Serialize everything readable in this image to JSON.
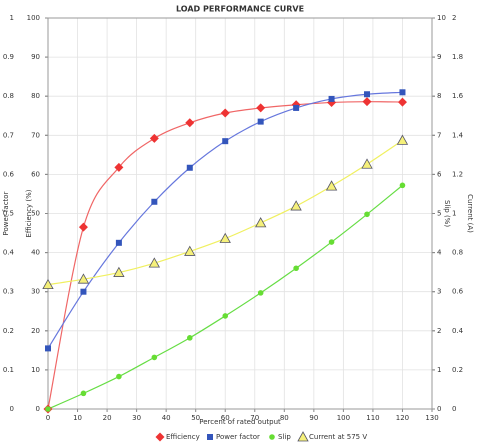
{
  "chart_data": {
    "type": "line",
    "title": "LOAD PERFORMANCE CURVE",
    "xlabel": "Percent of rated output",
    "xlim": [
      0,
      130
    ],
    "xticks": [
      0,
      10,
      20,
      30,
      40,
      50,
      60,
      70,
      80,
      90,
      100,
      110,
      120,
      130
    ],
    "grid": true,
    "axes": [
      {
        "label": "Power factor",
        "side": "left",
        "lim": [
          0,
          1
        ],
        "ticks": [
          0,
          0.1,
          0.2,
          0.3,
          0.4,
          0.5,
          0.6,
          0.7,
          0.8,
          0.9,
          1
        ]
      },
      {
        "label": "Efficiency (%)",
        "side": "left",
        "lim": [
          0,
          100
        ],
        "ticks": [
          0,
          10,
          20,
          30,
          40,
          50,
          60,
          70,
          80,
          90,
          100
        ]
      },
      {
        "label": "Slip (%)",
        "side": "right",
        "lim": [
          0,
          10
        ],
        "ticks": [
          0,
          1,
          2,
          3,
          4,
          5,
          6,
          7,
          8,
          9,
          10
        ]
      },
      {
        "label": "Current (A)",
        "side": "right",
        "lim": [
          0,
          2
        ],
        "ticks": [
          0,
          0.2,
          0.4,
          0.6,
          0.8,
          1,
          1.2,
          1.4,
          1.6,
          1.8,
          2
        ]
      }
    ],
    "x": [
      0,
      12,
      24,
      36,
      48,
      60,
      72,
      84,
      96,
      108,
      120
    ],
    "series": [
      {
        "name": "Efficiency",
        "axis": 1,
        "marker": "diamond",
        "color": "#ee3333",
        "line_color": "#f06666",
        "values": [
          0,
          46.5,
          61.8,
          69.2,
          73.2,
          75.7,
          77,
          77.8,
          78.4,
          78.6,
          78.5
        ]
      },
      {
        "name": "Power factor",
        "axis": 0,
        "marker": "square",
        "color": "#3355bb",
        "line_color": "#6677dd",
        "values": [
          0.155,
          0.3,
          0.425,
          0.53,
          0.617,
          0.685,
          0.735,
          0.77,
          0.793,
          0.805,
          0.81
        ]
      },
      {
        "name": "Slip",
        "axis": 2,
        "marker": "circle",
        "color": "#66dd33",
        "line_color": "#66dd44",
        "values": [
          0,
          0.4,
          0.83,
          1.32,
          1.82,
          2.38,
          2.97,
          3.6,
          4.27,
          4.98,
          5.72
        ]
      },
      {
        "name": "Current at 575 V",
        "axis": 3,
        "marker": "triangle",
        "color": "#f5f07a",
        "line_color": "#f0f060",
        "values": [
          0.636,
          0.664,
          0.698,
          0.746,
          0.806,
          0.872,
          0.952,
          1.038,
          1.14,
          1.252,
          1.374
        ]
      }
    ]
  }
}
